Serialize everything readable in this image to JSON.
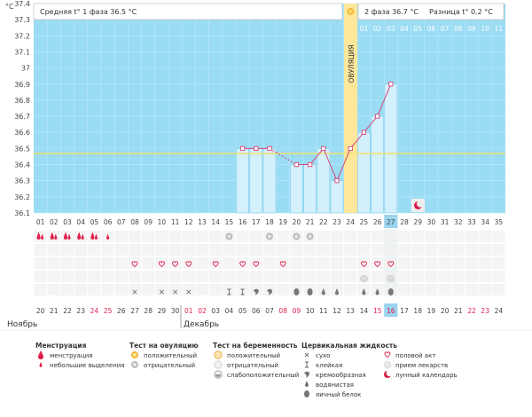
{
  "chart_data": {
    "type": "line",
    "title": "",
    "ylabel": "°C",
    "ylim": [
      36.1,
      37.4
    ],
    "y_ticks": [
      "37.4",
      "37.3",
      "37.2",
      "37.1",
      "37",
      "36.9",
      "36.8",
      "36.7",
      "36.6",
      "36.5",
      "36.4",
      "36.3",
      "36.2",
      "36.1"
    ],
    "cycle_day_labels": [
      "01",
      "02",
      "03",
      "04",
      "05",
      "06",
      "07",
      "08",
      "09",
      "10",
      "11",
      "12",
      "13",
      "14",
      "15",
      "16",
      "17",
      "18",
      "19",
      "20",
      "21",
      "22",
      "23",
      "24",
      "25",
      "26",
      "27",
      "28",
      "29",
      "30",
      "31",
      "32",
      "33",
      "34",
      "35"
    ],
    "upper_day_labels": [
      "01",
      "02",
      "03",
      "04",
      "05",
      "06",
      "07",
      "08",
      "09",
      "10",
      "11"
    ],
    "calendar_dates": [
      "20",
      "21",
      "22",
      "23",
      "24",
      "25",
      "26",
      "27",
      "28",
      "29",
      "30",
      "01",
      "02",
      "03",
      "04",
      "05",
      "06",
      "07",
      "08",
      "09",
      "10",
      "11",
      "12",
      "13",
      "14",
      "15",
      "16",
      "17",
      "18",
      "19",
      "20",
      "21",
      "22",
      "23",
      "24"
    ],
    "red_date_indices": [
      4,
      5,
      11,
      12,
      18,
      19,
      25,
      26,
      32,
      33
    ],
    "today_index": 26,
    "months": [
      "Ноябрь",
      "Декабрь"
    ],
    "series": [
      {
        "name": "Базальная температура",
        "points": [
          {
            "day": 16,
            "value": 36.5
          },
          {
            "day": 17,
            "value": 36.5
          },
          {
            "day": 18,
            "value": 36.5
          },
          {
            "day": 20,
            "value": 36.4
          },
          {
            "day": 21,
            "value": 36.4
          },
          {
            "day": 22,
            "value": 36.5
          },
          {
            "day": 23,
            "value": 36.3
          },
          {
            "day": 24,
            "value": 36.5
          },
          {
            "day": 25,
            "value": 36.6
          },
          {
            "day": 26,
            "value": 36.7
          },
          {
            "day": 27,
            "value": 36.9
          }
        ]
      }
    ],
    "coverline": 36.5,
    "ovulation_day": 24,
    "ovulation_label": "ОВУЛЯЦИЯ",
    "phase1_text": "Средняя t° 1 фаза 36.5 °C",
    "phase2_text": "2 фаза 36.7 °C",
    "difference_text": "Разница t° 0.2 °C",
    "marker_rows": {
      "menstruation": [
        {
          "day": 1,
          "type": "heavy"
        },
        {
          "day": 2,
          "type": "heavy"
        },
        {
          "day": 3,
          "type": "heavy"
        },
        {
          "day": 4,
          "type": "heavy"
        },
        {
          "day": 5,
          "type": "heavy"
        },
        {
          "day": 6,
          "type": "light"
        }
      ],
      "ovulation_test": [
        {
          "day": 15,
          "type": "neg"
        },
        {
          "day": 18,
          "type": "neg"
        },
        {
          "day": 20,
          "type": "neg"
        },
        {
          "day": 21,
          "type": "neg"
        }
      ],
      "intercourse": [
        {
          "day": 8
        },
        {
          "day": 10
        },
        {
          "day": 11
        },
        {
          "day": 12
        },
        {
          "day": 14
        },
        {
          "day": 16
        },
        {
          "day": 17
        },
        {
          "day": 19
        },
        {
          "day": 25
        },
        {
          "day": 26
        },
        {
          "day": 27
        }
      ],
      "medication": [
        {
          "day": 25
        },
        {
          "day": 27
        }
      ],
      "cervical_fluid": [
        {
          "day": 8,
          "type": "dry"
        },
        {
          "day": 10,
          "type": "dry"
        },
        {
          "day": 11,
          "type": "dry"
        },
        {
          "day": 12,
          "type": "dry"
        },
        {
          "day": 15,
          "type": "sticky"
        },
        {
          "day": 16,
          "type": "sticky"
        },
        {
          "day": 17,
          "type": "creamy"
        },
        {
          "day": 18,
          "type": "creamy"
        },
        {
          "day": 20,
          "type": "eggwhite"
        },
        {
          "day": 21,
          "type": "eggwhite"
        },
        {
          "day": 22,
          "type": "watery"
        },
        {
          "day": 23,
          "type": "watery"
        },
        {
          "day": 25,
          "type": "watery"
        },
        {
          "day": 26,
          "type": "watery"
        },
        {
          "day": 27,
          "type": "eggwhite"
        }
      ]
    }
  },
  "legend": {
    "menstruation": {
      "title": "Менструация",
      "items": [
        "менструация",
        "небольшие выделения"
      ]
    },
    "ovulation_test": {
      "title": "Тест на овуляцию",
      "items": [
        "положительный",
        "отрицательный"
      ]
    },
    "pregnancy_test": {
      "title": "Тест на беременность",
      "items": [
        "положительный",
        "отрицательный",
        "слабоположительный"
      ]
    },
    "cervical_fluid": {
      "title": "Цервикальная жидкость",
      "items": [
        "сухо",
        "клейкая",
        "кремообразная",
        "водянистая",
        "яичный белок"
      ]
    },
    "other": {
      "items": [
        "половой акт",
        "прием лекарств",
        "лунный календарь"
      ]
    }
  },
  "colors": {
    "grid_blue": "#9adcf3",
    "bar_fill": "#d4f0fc",
    "bar_stroke": "#7ccbeb",
    "line_pink": "#d8457a",
    "coverline": "#f0e070",
    "ovulation": "#fde79a",
    "today": "#9bd4ef",
    "red_date": "#e0204c"
  }
}
